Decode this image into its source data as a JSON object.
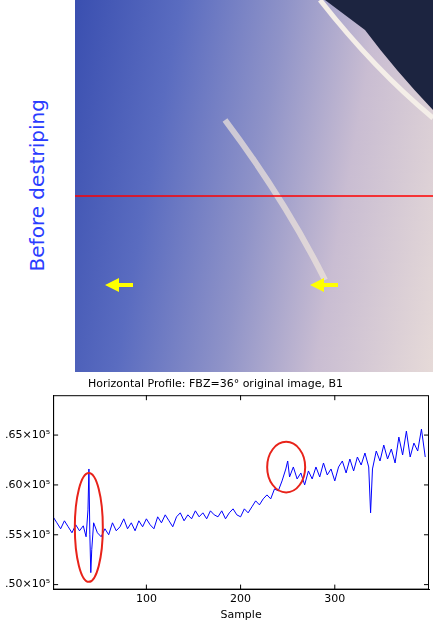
{
  "image_label": "Before destriping",
  "chart_data": {
    "type": "line",
    "title": "Horizontal Profile: FBZ=36° original image, B1",
    "x_label": "Sample",
    "x": [
      1,
      5,
      9,
      13,
      17,
      21,
      25,
      29,
      33,
      36,
      38,
      39,
      40,
      41,
      42,
      44,
      48,
      52,
      56,
      60,
      64,
      68,
      72,
      76,
      80,
      84,
      88,
      92,
      96,
      100,
      104,
      108,
      112,
      116,
      120,
      124,
      128,
      132,
      136,
      140,
      144,
      148,
      152,
      156,
      160,
      164,
      168,
      172,
      176,
      180,
      184,
      188,
      192,
      196,
      200,
      204,
      208,
      212,
      216,
      220,
      224,
      228,
      232,
      236,
      240,
      244,
      248,
      250,
      252,
      256,
      260,
      264,
      268,
      272,
      276,
      280,
      284,
      288,
      292,
      296,
      300,
      304,
      308,
      312,
      316,
      320,
      324,
      328,
      332,
      336,
      338,
      340,
      344,
      348,
      352,
      356,
      360,
      364,
      368,
      372,
      376,
      380,
      384,
      388,
      392,
      396
    ],
    "values": [
      56800,
      56200,
      55600,
      56400,
      55800,
      55200,
      56000,
      55400,
      55900,
      54800,
      57500,
      61600,
      55000,
      51200,
      53500,
      56200,
      55200,
      54800,
      55600,
      55000,
      56200,
      55400,
      55800,
      56600,
      55600,
      56200,
      55400,
      56400,
      55800,
      56600,
      56000,
      55600,
      56800,
      56200,
      57000,
      56400,
      55800,
      56800,
      57200,
      56400,
      57000,
      56600,
      57400,
      56800,
      57200,
      56600,
      57400,
      57000,
      56800,
      57400,
      56600,
      57200,
      57600,
      57000,
      56800,
      57600,
      57200,
      57800,
      58400,
      58000,
      58600,
      59000,
      58600,
      59600,
      59400,
      60400,
      61600,
      62400,
      60800,
      61800,
      60600,
      61200,
      60000,
      61400,
      60600,
      61800,
      60800,
      62200,
      61000,
      61600,
      60400,
      61800,
      62400,
      61200,
      62600,
      61400,
      62800,
      62000,
      63200,
      61800,
      57200,
      61600,
      63400,
      62400,
      64000,
      62600,
      63600,
      62200,
      64800,
      63000,
      65400,
      62800,
      64200,
      63400,
      65600,
      62800
    ],
    "color": "#0000ff",
    "xlim": [
      1,
      400
    ],
    "xticks": [
      100,
      200,
      300
    ],
    "ylim": [
      49500,
      69000
    ],
    "yticks": [
      {
        "value": 50000,
        "label": ".50×10⁵"
      },
      {
        "value": 55000,
        "label": ".55×10⁵"
      },
      {
        "value": 60000,
        "label": ".60×10⁵"
      },
      {
        "value": 65000,
        "label": ".65×10⁵"
      }
    ],
    "grid": false
  }
}
